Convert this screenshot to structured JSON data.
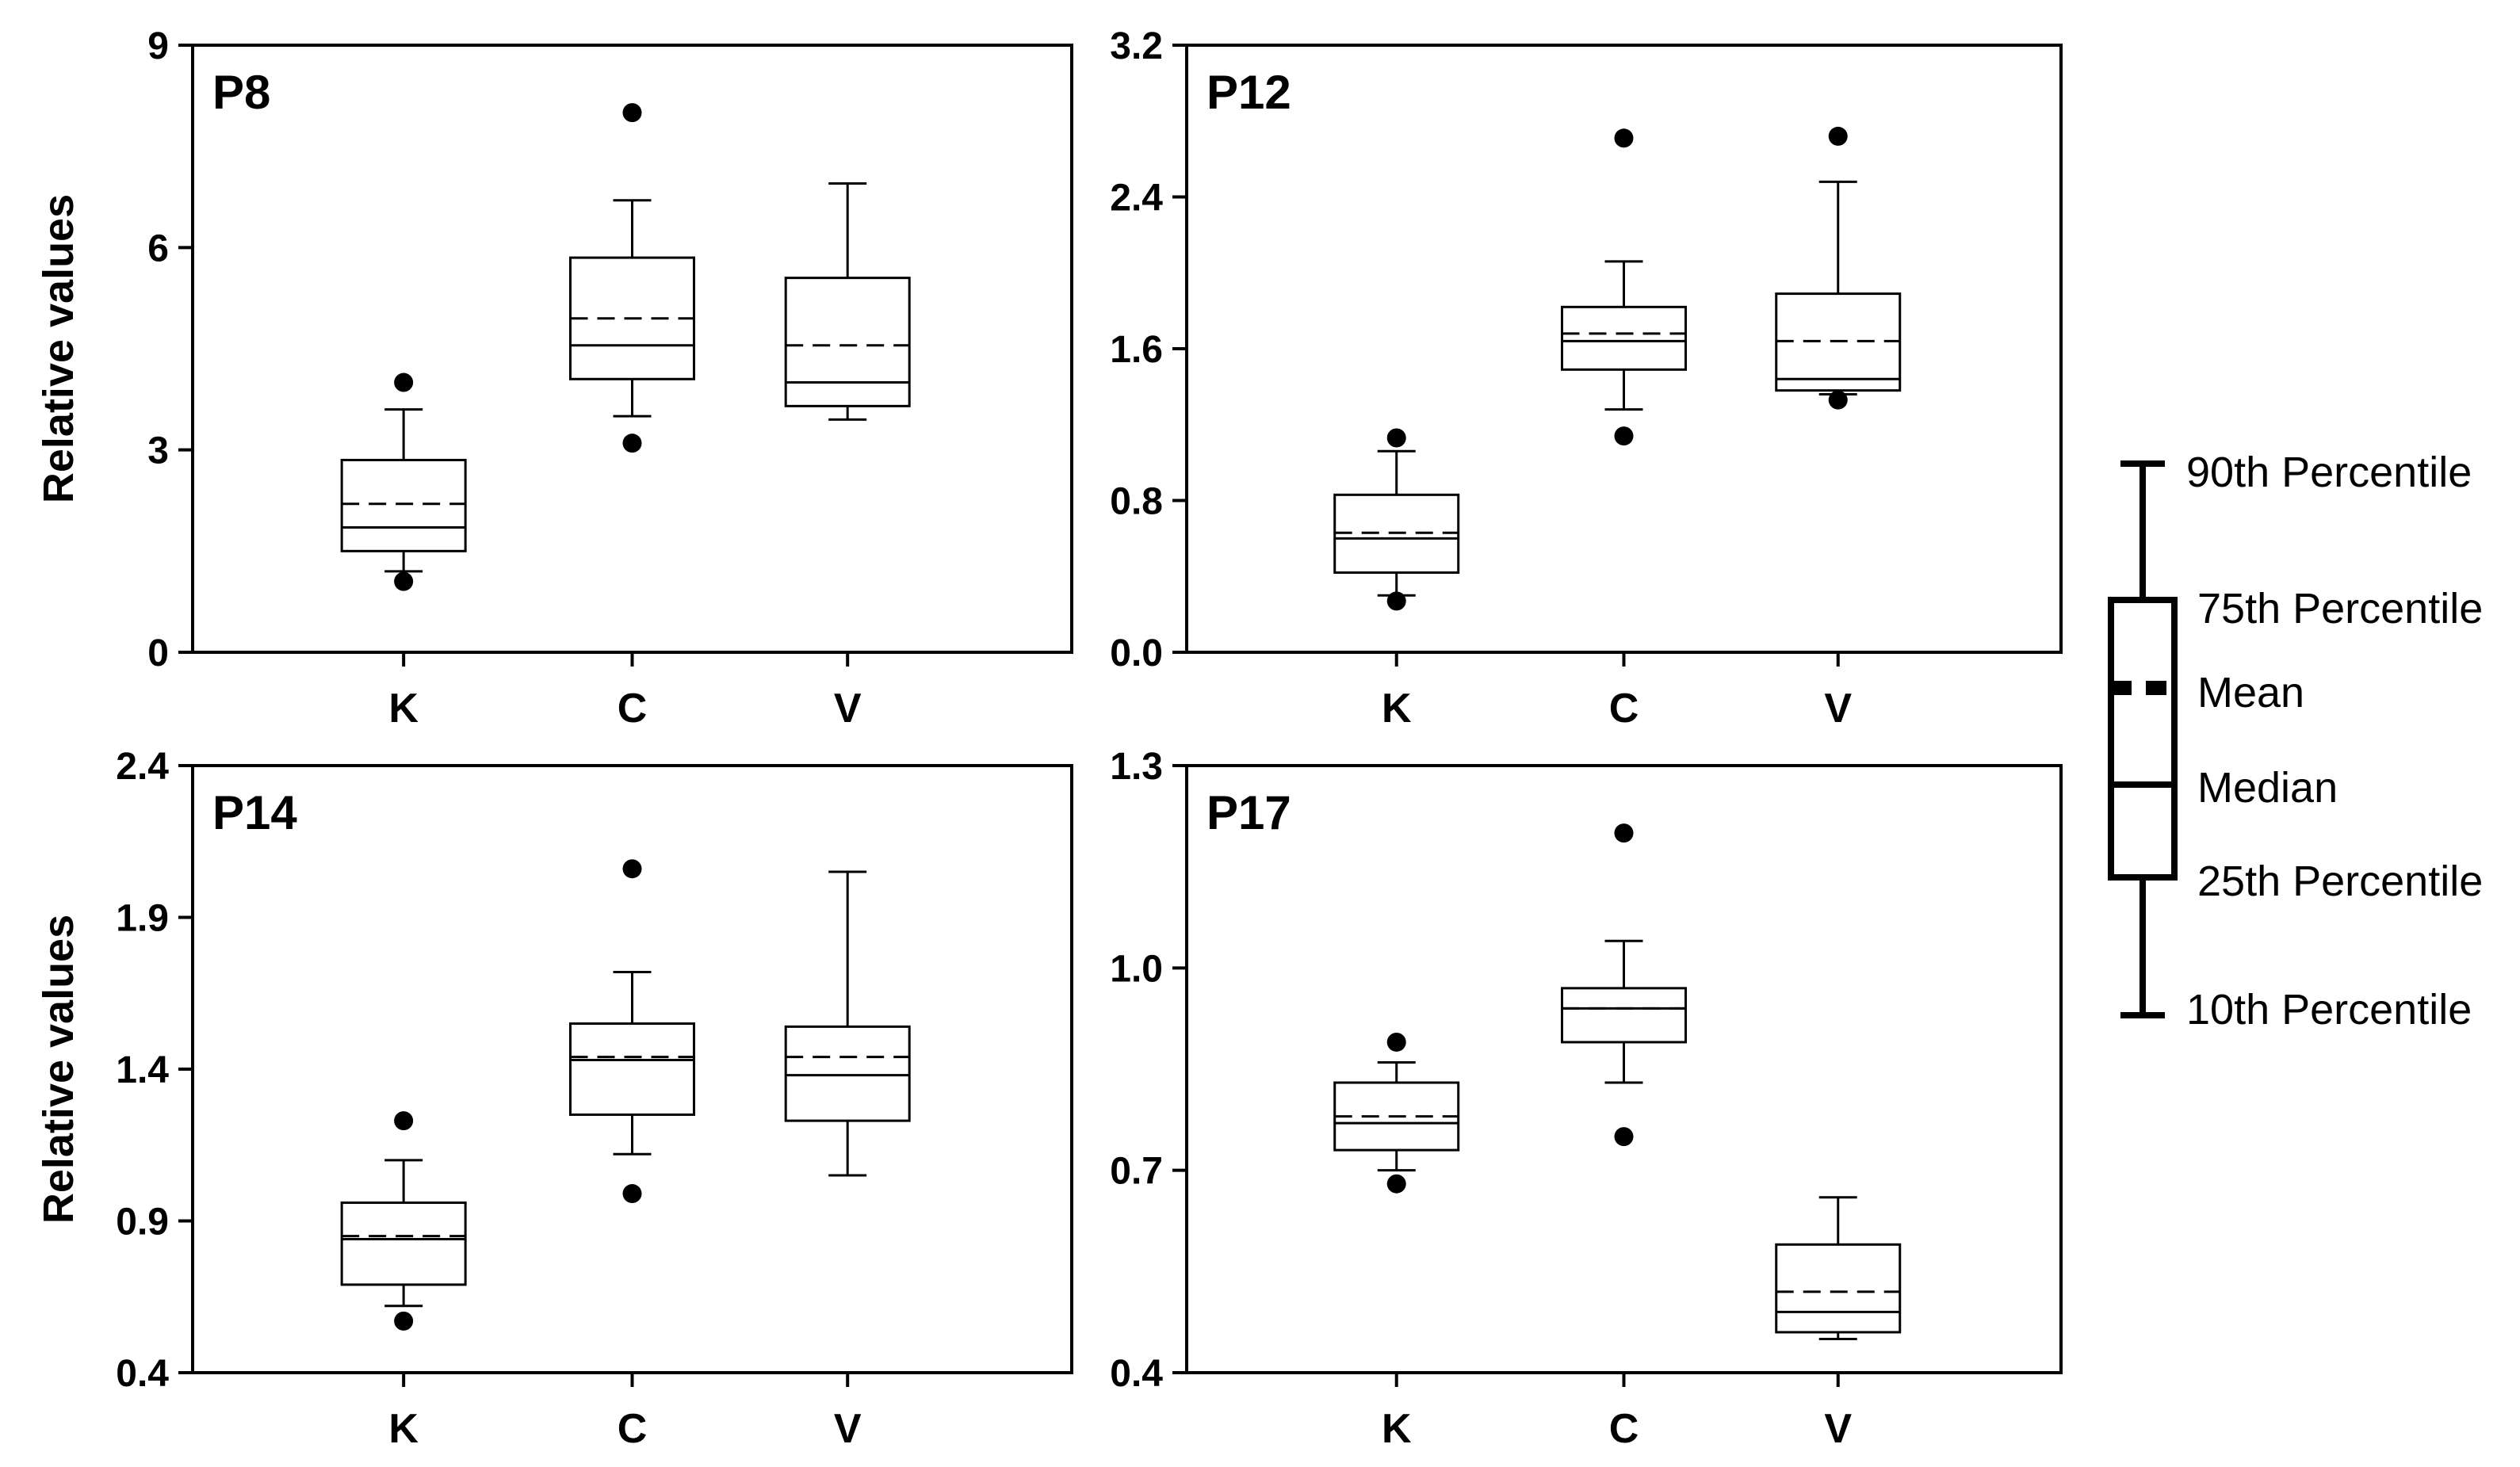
{
  "chart_data": [
    {
      "type": "box",
      "panel_label": "P8",
      "ylabel": "Relative values",
      "ylim": [
        0,
        9
      ],
      "yticks": [
        "0",
        "3",
        "6",
        "9"
      ],
      "categories": [
        "K",
        "C",
        "V"
      ],
      "boxes": [
        {
          "category": "K",
          "p10": 1.2,
          "p25": 1.5,
          "median": 1.85,
          "mean": 2.2,
          "p75": 2.85,
          "p90": 3.6,
          "outliers": [
            4.0,
            1.05
          ]
        },
        {
          "category": "C",
          "p10": 3.5,
          "p25": 4.05,
          "median": 4.55,
          "mean": 4.95,
          "p75": 5.85,
          "p90": 6.7,
          "outliers": [
            8.0,
            3.1
          ]
        },
        {
          "category": "V",
          "p10": 3.45,
          "p25": 3.65,
          "median": 4.0,
          "mean": 4.55,
          "p75": 5.55,
          "p90": 6.95,
          "outliers": []
        }
      ]
    },
    {
      "type": "box",
      "panel_label": "P12",
      "ylabel": "",
      "ylim": [
        0,
        3.2
      ],
      "yticks": [
        "0.0",
        "0.8",
        "1.6",
        "2.4",
        "3.2"
      ],
      "categories": [
        "K",
        "C",
        "V"
      ],
      "boxes": [
        {
          "category": "K",
          "p10": 0.3,
          "p25": 0.42,
          "median": 0.6,
          "mean": 0.63,
          "p75": 0.83,
          "p90": 1.06,
          "outliers": [
            1.13,
            0.27
          ]
        },
        {
          "category": "C",
          "p10": 1.28,
          "p25": 1.49,
          "median": 1.64,
          "mean": 1.68,
          "p75": 1.82,
          "p90": 2.06,
          "outliers": [
            2.71,
            1.14
          ]
        },
        {
          "category": "V",
          "p10": 1.36,
          "p25": 1.38,
          "median": 1.44,
          "mean": 1.64,
          "p75": 1.89,
          "p90": 2.48,
          "outliers": [
            2.72,
            1.33
          ]
        }
      ]
    },
    {
      "type": "box",
      "panel_label": "P14",
      "ylabel": "Relative values",
      "ylim": [
        0.4,
        2.4
      ],
      "yticks": [
        "0.4",
        "0.9",
        "1.4",
        "1.9",
        "2.4"
      ],
      "categories": [
        "K",
        "C",
        "V"
      ],
      "boxes": [
        {
          "category": "K",
          "p10": 0.62,
          "p25": 0.69,
          "median": 0.84,
          "mean": 0.85,
          "p75": 0.96,
          "p90": 1.1,
          "outliers": [
            1.23,
            0.57
          ]
        },
        {
          "category": "C",
          "p10": 1.12,
          "p25": 1.25,
          "median": 1.43,
          "mean": 1.44,
          "p75": 1.55,
          "p90": 1.72,
          "outliers": [
            2.06,
            0.99
          ]
        },
        {
          "category": "V",
          "p10": 1.05,
          "p25": 1.23,
          "median": 1.38,
          "mean": 1.44,
          "p75": 1.54,
          "p90": 2.05,
          "outliers": []
        }
      ]
    },
    {
      "type": "box",
      "panel_label": "P17",
      "ylabel": "",
      "ylim": [
        0.4,
        1.3
      ],
      "yticks": [
        "0.4",
        "0.7",
        "1.0",
        "1.3"
      ],
      "categories": [
        "K",
        "C",
        "V"
      ],
      "boxes": [
        {
          "category": "K",
          "p10": 0.7,
          "p25": 0.73,
          "median": 0.77,
          "mean": 0.78,
          "p75": 0.83,
          "p90": 0.86,
          "outliers": [
            0.89,
            0.68
          ]
        },
        {
          "category": "C",
          "p10": 0.83,
          "p25": 0.89,
          "median": 0.94,
          "mean": 0.94,
          "p75": 0.97,
          "p90": 1.04,
          "outliers": [
            1.2,
            0.75
          ]
        },
        {
          "category": "V",
          "p10": 0.45,
          "p25": 0.46,
          "median": 0.49,
          "mean": 0.52,
          "p75": 0.59,
          "p90": 0.66,
          "outliers": []
        }
      ]
    }
  ],
  "legend": {
    "items": [
      "90th Percentile",
      "75th Percentile",
      "Mean",
      "Median",
      "25th Percentile",
      "10th Percentile"
    ]
  }
}
